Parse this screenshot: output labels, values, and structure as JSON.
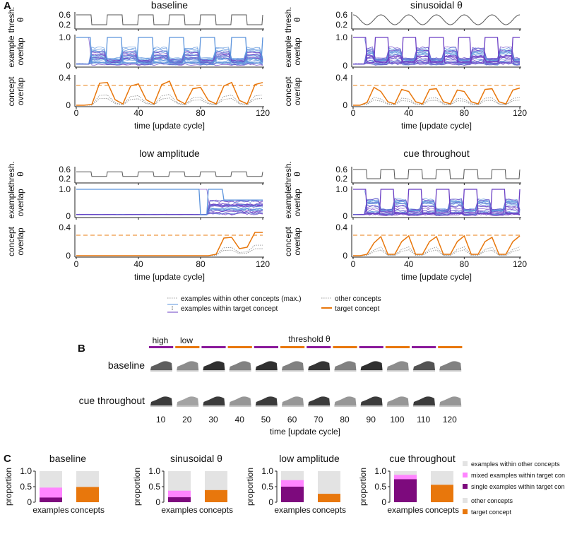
{
  "panel_labels": {
    "a": "A",
    "b": "B",
    "c": "C"
  },
  "panel_a": {
    "ylabels": {
      "thresh": [
        "thresh.",
        "θ"
      ],
      "example": [
        "example",
        "overlap"
      ],
      "concept": [
        "concept",
        "overlap"
      ]
    },
    "xlabel": "time [update cycle]",
    "xticks": [
      "0",
      "40",
      "80",
      "120"
    ],
    "thresh_ticks": [
      "0.6",
      "0.2"
    ],
    "example_ticks": [
      "1.0",
      "0"
    ],
    "concept_ticks": [
      "0.4",
      "0"
    ],
    "dashed_level": 0.29,
    "legend": {
      "other_examples": "examples within other concepts (max.)",
      "target_examples": "examples within target concept",
      "other_concepts": "other concepts",
      "target_concept": "target concept"
    }
  },
  "chart_data": [
    {
      "type": "line",
      "title": "baseline",
      "threshold": {
        "kind": "square",
        "high": 0.6,
        "low": 0.2,
        "half_period": 10
      },
      "x": [
        0,
        5,
        10,
        15,
        20,
        25,
        30,
        35,
        40,
        45,
        50,
        55,
        60,
        65,
        70,
        75,
        80,
        85,
        90,
        95,
        100,
        105,
        110,
        115,
        120
      ],
      "series": [
        {
          "name": "target concept",
          "values": [
            0,
            0,
            0.01,
            0.32,
            0.33,
            0.08,
            0.02,
            0.28,
            0.31,
            0.08,
            0.02,
            0.3,
            0.35,
            0.08,
            0.02,
            0.24,
            0.26,
            0.07,
            0.02,
            0.28,
            0.33,
            0.07,
            0.02,
            0.3,
            0.33
          ]
        }
      ],
      "xlim": [
        0,
        120
      ]
    },
    {
      "type": "line",
      "title": "sinusoidal θ",
      "threshold": {
        "kind": "sine",
        "high": 0.6,
        "low": 0.2,
        "period": 20
      },
      "x": [
        0,
        5,
        10,
        15,
        20,
        25,
        30,
        35,
        40,
        45,
        50,
        55,
        60,
        65,
        70,
        75,
        80,
        85,
        90,
        95,
        100,
        105,
        110,
        115,
        120
      ],
      "series": [
        {
          "name": "target concept",
          "values": [
            0,
            0,
            0.04,
            0.26,
            0.2,
            0.05,
            0.02,
            0.23,
            0.2,
            0.05,
            0.02,
            0.23,
            0.24,
            0.05,
            0.02,
            0.22,
            0.2,
            0.05,
            0.02,
            0.23,
            0.24,
            0.05,
            0.02,
            0.22,
            0.25
          ]
        }
      ],
      "xlim": [
        0,
        120
      ]
    },
    {
      "type": "line",
      "title": "low amplitude",
      "threshold": {
        "kind": "square",
        "high": 0.5,
        "low": 0.3,
        "half_period": 10
      },
      "x": [
        0,
        5,
        10,
        15,
        20,
        25,
        30,
        35,
        40,
        45,
        50,
        55,
        60,
        65,
        70,
        75,
        80,
        85,
        90,
        95,
        100,
        105,
        110,
        115,
        120
      ],
      "series": [
        {
          "name": "target concept",
          "values": [
            0,
            0,
            0,
            0,
            0,
            0,
            0,
            0,
            0,
            0,
            0,
            0,
            0,
            0,
            0,
            0,
            0,
            0,
            0.02,
            0.25,
            0.26,
            0.1,
            0.12,
            0.33,
            0.33
          ]
        }
      ],
      "xlim": [
        0,
        120
      ]
    },
    {
      "type": "line",
      "title": "cue throughout",
      "threshold": {
        "kind": "square",
        "high": 0.6,
        "low": 0.2,
        "half_period": 10
      },
      "x": [
        0,
        5,
        10,
        15,
        20,
        25,
        30,
        35,
        40,
        45,
        50,
        55,
        60,
        65,
        70,
        75,
        80,
        85,
        90,
        95,
        100,
        105,
        110,
        115,
        120
      ],
      "series": [
        {
          "name": "target concept",
          "values": [
            0,
            0,
            0.02,
            0.18,
            0.27,
            0.02,
            0.02,
            0.2,
            0.28,
            0.02,
            0.02,
            0.2,
            0.27,
            0.02,
            0.02,
            0.2,
            0.28,
            0.02,
            0.02,
            0.2,
            0.26,
            0.02,
            0.02,
            0.2,
            0.28
          ]
        }
      ],
      "xlim": [
        0,
        120
      ]
    },
    {
      "type": "bar",
      "title": "baseline",
      "ylabel": "proportion",
      "categories": [
        "examples",
        "concepts"
      ],
      "yticks": [
        "1.0",
        "0.5",
        "0"
      ],
      "ylim": [
        0,
        1
      ],
      "examples": {
        "single": 0.15,
        "mixed": 0.32,
        "other": 0.53
      },
      "concepts": {
        "target": 0.49,
        "other": 0.51
      }
    },
    {
      "type": "bar",
      "title": "sinusoidal θ",
      "ylabel": "proportion",
      "categories": [
        "examples",
        "concepts"
      ],
      "yticks": [
        "1.0",
        "0.5",
        "0"
      ],
      "ylim": [
        0,
        1
      ],
      "examples": {
        "single": 0.16,
        "mixed": 0.21,
        "other": 0.63
      },
      "concepts": {
        "target": 0.39,
        "other": 0.61
      }
    },
    {
      "type": "bar",
      "title": "low amplitude",
      "ylabel": "proportion",
      "categories": [
        "examples",
        "concepts"
      ],
      "yticks": [
        "1.0",
        "0.5",
        "0"
      ],
      "ylim": [
        0,
        1
      ],
      "examples": {
        "single": 0.5,
        "mixed": 0.21,
        "other": 0.29
      },
      "concepts": {
        "target": 0.27,
        "other": 0.73
      }
    },
    {
      "type": "bar",
      "title": "cue throughout",
      "ylabel": "proportion",
      "categories": [
        "examples",
        "concepts"
      ],
      "yticks": [
        "1.0",
        "0.5",
        "0"
      ],
      "ylim": [
        0,
        1
      ],
      "examples": {
        "single": 0.74,
        "mixed": 0.14,
        "other": 0.12
      },
      "concepts": {
        "target": 0.56,
        "other": 0.44
      }
    }
  ],
  "panel_b": {
    "header": "threshold θ",
    "high": "high",
    "low": "low",
    "rows": [
      "baseline",
      "cue throughout"
    ],
    "times": [
      "10",
      "20",
      "30",
      "40",
      "50",
      "60",
      "70",
      "80",
      "90",
      "100",
      "110",
      "120"
    ],
    "phases": [
      "high",
      "low",
      "high",
      "low",
      "high",
      "low",
      "high",
      "low",
      "high",
      "low",
      "high",
      "low"
    ],
    "baseline_darkness": [
      0.7,
      0.5,
      0.9,
      0.55,
      0.9,
      0.55,
      0.88,
      0.55,
      0.9,
      0.5,
      0.75,
      0.55
    ],
    "cue_darkness": [
      0.85,
      0.4,
      0.85,
      0.45,
      0.85,
      0.45,
      0.85,
      0.45,
      0.85,
      0.45,
      0.85,
      0.45
    ],
    "xlabel": "time [update cycle]"
  },
  "panel_c_legend": {
    "other_examples": "examples within other concepts",
    "mixed": "mixed examples within target concept",
    "single": "single examples within target concept",
    "other_concepts": "other concepts",
    "target_concept": "target concept"
  },
  "colors": {
    "orange": "#e8770c",
    "purple": "#8a1a9b",
    "dark_purple": "#7d0a7d",
    "pink": "#ff85ff",
    "gray": "#e3e3e3",
    "blue": "#5b93dc",
    "violet": "#6b3fc4",
    "light_orange": "#f0a860"
  }
}
